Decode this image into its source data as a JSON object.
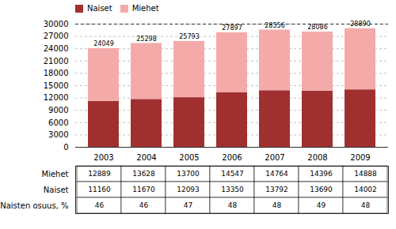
{
  "chart_data": {
    "type": "bar",
    "stacked": true,
    "categories": [
      "2003",
      "2004",
      "2005",
      "2006",
      "2007",
      "2008",
      "2009"
    ],
    "series": [
      {
        "name": "Naiset",
        "color": "#A03030",
        "values": [
          11160,
          11670,
          12093,
          13350,
          13792,
          13690,
          14002
        ]
      },
      {
        "name": "Miehet",
        "color": "#F5AAAA",
        "values": [
          12889,
          13628,
          13700,
          14547,
          14764,
          14396,
          14888
        ]
      }
    ],
    "totals": [
      24049,
      25298,
      25793,
      27897,
      28556,
      28086,
      28890
    ],
    "reference_lines": [
      {
        "value": 30000,
        "line_style": "dashed"
      }
    ],
    "ylim": [
      0,
      30000
    ],
    "yticks": [
      0,
      3000,
      6000,
      9000,
      12000,
      15000,
      18000,
      21000,
      24000,
      27000,
      30000
    ],
    "grid": true,
    "legend": "upper left",
    "table": {
      "row_labels": [
        "Miehet",
        "Naiset",
        "Naisten osuus, %"
      ],
      "rows": [
        [
          12889,
          13628,
          13700,
          14547,
          14764,
          14396,
          14888
        ],
        [
          11160,
          11670,
          12093,
          13350,
          13792,
          13690,
          14002
        ],
        [
          46,
          46,
          47,
          48,
          48,
          49,
          48
        ]
      ]
    }
  }
}
